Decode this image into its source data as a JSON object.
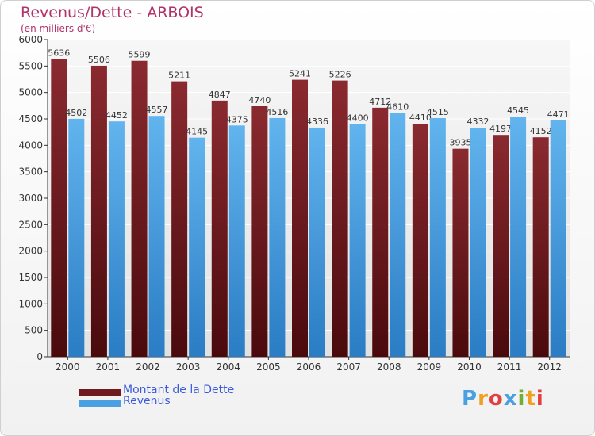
{
  "header": {
    "title": "Revenus/Dette - ARBOIS",
    "subtitle": "(en milliers d'€)"
  },
  "chart_data": {
    "type": "bar",
    "title": "Revenus/Dette - ARBOIS",
    "ylabel": "(en milliers d'€)",
    "xlabel": "",
    "categories": [
      "2000",
      "2001",
      "2002",
      "2003",
      "2004",
      "2005",
      "2006",
      "2007",
      "2008",
      "2009",
      "2010",
      "2011",
      "2012"
    ],
    "series": [
      {
        "name": "Montant de la Dette",
        "color": "#6e1a1e",
        "values": [
          5636,
          5506,
          5599,
          5211,
          4847,
          4740,
          5241,
          5226,
          4712,
          4410,
          3935,
          4197,
          4152
        ]
      },
      {
        "name": "Revenus",
        "color": "#4aa0e0",
        "values": [
          4502,
          4452,
          4557,
          4145,
          4375,
          4516,
          4336,
          4400,
          4610,
          4515,
          4332,
          4545,
          4471
        ]
      }
    ],
    "ylim": [
      0,
      6000
    ],
    "yticks": [
      0,
      500,
      1000,
      1500,
      2000,
      2500,
      3000,
      3500,
      4000,
      4500,
      5000,
      5500,
      6000
    ],
    "grid": true,
    "legend": "bottom-left"
  },
  "legend": {
    "items": [
      {
        "label": "Montant de la Dette",
        "color": "#6e1a1e"
      },
      {
        "label": "Revenus",
        "color": "#4aa0e0"
      }
    ]
  },
  "logo": {
    "letters": [
      "P",
      "r",
      "o",
      "x",
      "i",
      "t",
      "i"
    ],
    "colors": [
      "#4aa0e0",
      "#f0a020",
      "#e04040",
      "#4aa0e0",
      "#70b030",
      "#f0a020",
      "#e04040"
    ]
  }
}
